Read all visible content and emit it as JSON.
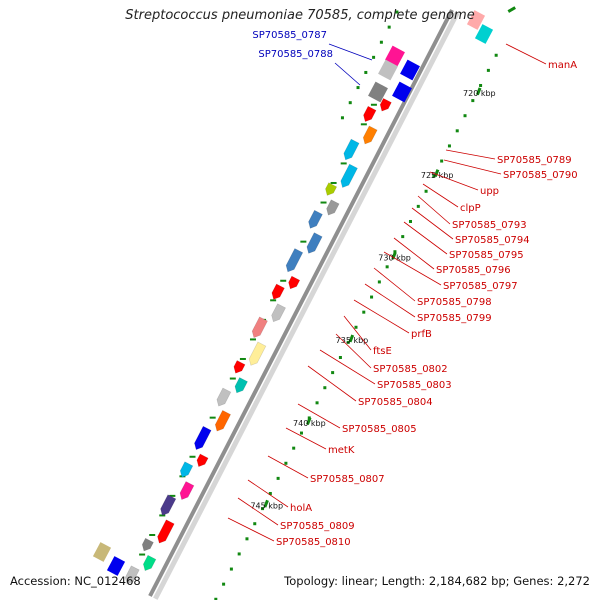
{
  "title": "Streptococcus pneumoniae 70585, complete genome",
  "footer": {
    "accession": "Accession: NC_012468",
    "summary": "Topology: linear; Length: 2,184,682 bp; Genes: 2,272"
  },
  "colors": {
    "backbone": "#a8a8a8",
    "forward_gene": "#ff0000",
    "label_red": "#cc0000",
    "label_blue": "#0000bb",
    "tick_major": "#118811",
    "tick_minor": "#118811"
  },
  "scale": {
    "ticks": [
      {
        "label": "720 kbp"
      },
      {
        "label": "725 kbp"
      },
      {
        "label": "730 kbp"
      },
      {
        "label": "735 kbp"
      },
      {
        "label": "740 kbp"
      },
      {
        "label": "745 kbp"
      }
    ]
  },
  "gene_labels_left": [
    {
      "name": "SP70585_0787"
    },
    {
      "name": "SP70585_0788"
    }
  ],
  "gene_labels_right": [
    {
      "name": "manA"
    },
    {
      "name": "SP70585_0789"
    },
    {
      "name": "SP70585_0790"
    },
    {
      "name": "upp"
    },
    {
      "name": "clpP"
    },
    {
      "name": "SP70585_0793"
    },
    {
      "name": "SP70585_0794"
    },
    {
      "name": "SP70585_0795"
    },
    {
      "name": "SP70585_0796"
    },
    {
      "name": "SP70585_0797"
    },
    {
      "name": "SP70585_0798"
    },
    {
      "name": "SP70585_0799"
    },
    {
      "name": "prfB"
    },
    {
      "name": "ftsE"
    },
    {
      "name": "SP70585_0802"
    },
    {
      "name": "SP70585_0803"
    },
    {
      "name": "SP70585_0804"
    },
    {
      "name": "SP70585_0805"
    },
    {
      "name": "metK"
    },
    {
      "name": "SP70585_0807"
    },
    {
      "name": "holA"
    },
    {
      "name": "SP70585_0809"
    },
    {
      "name": "SP70585_0810"
    }
  ]
}
